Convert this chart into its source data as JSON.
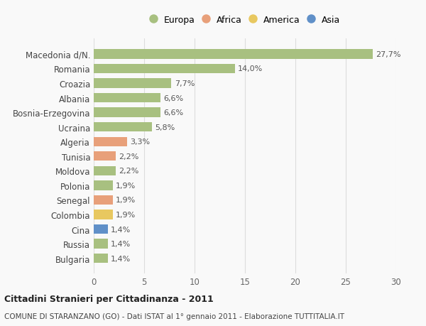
{
  "categories": [
    "Macedonia d/N.",
    "Romania",
    "Croazia",
    "Albania",
    "Bosnia-Erzegovina",
    "Ucraina",
    "Algeria",
    "Tunisia",
    "Moldova",
    "Polonia",
    "Senegal",
    "Colombia",
    "Cina",
    "Russia",
    "Bulgaria"
  ],
  "values": [
    27.7,
    14.0,
    7.7,
    6.6,
    6.6,
    5.8,
    3.3,
    2.2,
    2.2,
    1.9,
    1.9,
    1.9,
    1.4,
    1.4,
    1.4
  ],
  "labels": [
    "27,7%",
    "14,0%",
    "7,7%",
    "6,6%",
    "6,6%",
    "5,8%",
    "3,3%",
    "2,2%",
    "2,2%",
    "1,9%",
    "1,9%",
    "1,9%",
    "1,4%",
    "1,4%",
    "1,4%"
  ],
  "colors": [
    "#a8c080",
    "#a8c080",
    "#a8c080",
    "#a8c080",
    "#a8c080",
    "#a8c080",
    "#e8a07a",
    "#e8a07a",
    "#a8c080",
    "#a8c080",
    "#e8a07a",
    "#e8c860",
    "#6090c8",
    "#a8c080",
    "#a8c080"
  ],
  "legend_labels": [
    "Europa",
    "Africa",
    "America",
    "Asia"
  ],
  "legend_colors": [
    "#a8c080",
    "#e8a07a",
    "#e8c860",
    "#6090c8"
  ],
  "xlim": [
    0,
    30
  ],
  "xticks": [
    0,
    5,
    10,
    15,
    20,
    25,
    30
  ],
  "title": "Cittadini Stranieri per Cittadinanza - 2011",
  "subtitle": "COMUNE DI STARANZANO (GO) - Dati ISTAT al 1° gennaio 2011 - Elaborazione TUTTITALIA.IT",
  "background_color": "#f9f9f9",
  "grid_color": "#dddddd",
  "bar_height": 0.65
}
